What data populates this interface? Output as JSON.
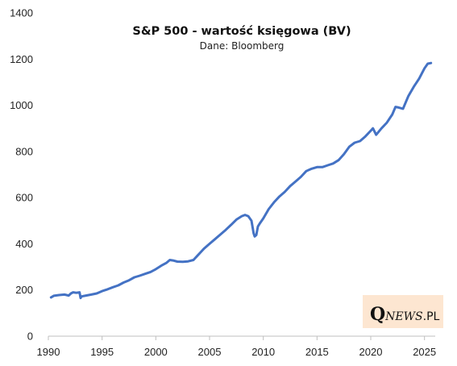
{
  "chart_data": {
    "type": "line",
    "title": "S&P 500 - wartość księgowa (BV)",
    "subtitle": "Dane: Bloomberg",
    "xlabel": "",
    "ylabel": "",
    "xlim": [
      1990,
      2026
    ],
    "ylim": [
      0,
      1400
    ],
    "x_ticks": [
      "1990",
      "1995",
      "2000",
      "2005",
      "2010",
      "2015",
      "2020",
      "2025"
    ],
    "y_ticks": [
      "0",
      "200",
      "400",
      "600",
      "800",
      "1000",
      "1200",
      "1400"
    ],
    "grid": false,
    "legend": false,
    "line_color": "#4472c4",
    "series": [
      {
        "x": [
          1990.25,
          1990.5,
          1991.0,
          1991.5,
          1991.9,
          1992.1,
          1992.3,
          1992.6,
          1992.9,
          1993.0,
          1993.05,
          1993.1,
          1993.5,
          1994.0,
          1994.5,
          1995.0,
          1995.5,
          1996.0,
          1996.5,
          1997.0,
          1997.5,
          1998.0,
          1998.5,
          1999.0,
          1999.5,
          2000.0,
          2000.5,
          2001.0,
          2001.3,
          2001.6,
          2002.0,
          2002.5,
          2003.0,
          2003.5,
          2003.8,
          2004.2,
          2004.5,
          2005.0,
          2005.5,
          2006.0,
          2006.5,
          2007.0,
          2007.5,
          2008.0,
          2008.3,
          2008.6,
          2008.9,
          2009.1,
          2009.2,
          2009.35,
          2009.5,
          2009.7,
          2010.0,
          2010.5,
          2011.0,
          2011.5,
          2012.0,
          2012.5,
          2013.0,
          2013.5,
          2014.0,
          2014.5,
          2015.0,
          2015.5,
          2016.0,
          2016.5,
          2017.0,
          2017.5,
          2018.0,
          2018.5,
          2019.0,
          2019.5,
          2020.0,
          2020.2,
          2020.5,
          2021.0,
          2021.5,
          2022.0,
          2022.3,
          2022.6,
          2023.0,
          2023.5,
          2024.0,
          2024.5,
          2025.0,
          2025.3,
          2025.6
        ],
        "y": [
          168,
          175,
          178,
          180,
          176,
          185,
          190,
          188,
          190,
          165,
          170,
          172,
          176,
          180,
          185,
          195,
          203,
          212,
          220,
          232,
          242,
          255,
          262,
          270,
          278,
          290,
          305,
          318,
          330,
          328,
          323,
          322,
          324,
          330,
          345,
          365,
          380,
          400,
          420,
          440,
          460,
          482,
          505,
          520,
          525,
          520,
          500,
          445,
          432,
          438,
          475,
          490,
          510,
          550,
          580,
          605,
          625,
          650,
          670,
          690,
          715,
          725,
          732,
          732,
          740,
          748,
          762,
          788,
          820,
          838,
          845,
          865,
          890,
          900,
          872,
          900,
          925,
          960,
          993,
          990,
          985,
          1040,
          1080,
          1115,
          1160,
          1180,
          1183
        ]
      }
    ]
  },
  "watermark": {
    "q": "Q",
    "news": "NEWS",
    "pl": ".PL",
    "background": "#fde6d1"
  }
}
